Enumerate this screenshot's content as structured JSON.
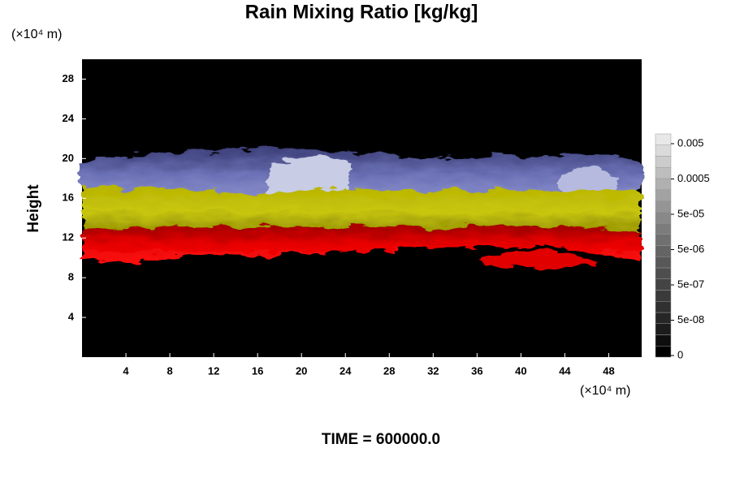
{
  "chart_data": {
    "type": "contour",
    "title": "Rain Mixing Ratio [kg/kg]",
    "y_label": "Height",
    "x_unit": "(×10⁴ m)",
    "y_unit": "(×10⁴ m)",
    "time_label": "TIME = 600000.0",
    "xlim": [
      0,
      51
    ],
    "xticks": [
      4,
      8,
      12,
      16,
      20,
      24,
      28,
      32,
      36,
      40,
      44,
      48
    ],
    "ylim": [
      0,
      30
    ],
    "yticks": [
      4,
      8,
      12,
      16,
      20,
      24,
      28
    ],
    "colorbar": {
      "ticks": [
        0,
        {
          "value": 5e-08,
          "label": "5e-08"
        },
        {
          "value": 5e-07,
          "label": "5e-07"
        },
        {
          "value": 5e-06,
          "label": "5e-06"
        },
        {
          "value": 5e-05,
          "label": "5e-05"
        },
        0.0005,
        0.005
      ],
      "colors": [
        "#000000",
        "#0e0e0e",
        "#1c1c1c",
        "#262626",
        "#303030",
        "#3a3a3a",
        "#444444",
        "#4e4e4e",
        "#585858",
        "#646464",
        "#707070",
        "#7c7c7c",
        "#888888",
        "#959595",
        "#a2a2a2",
        "#b0b0b0",
        "#bebebe",
        "#cccccc",
        "#dadada",
        "#e8e8e8"
      ]
    }
  }
}
